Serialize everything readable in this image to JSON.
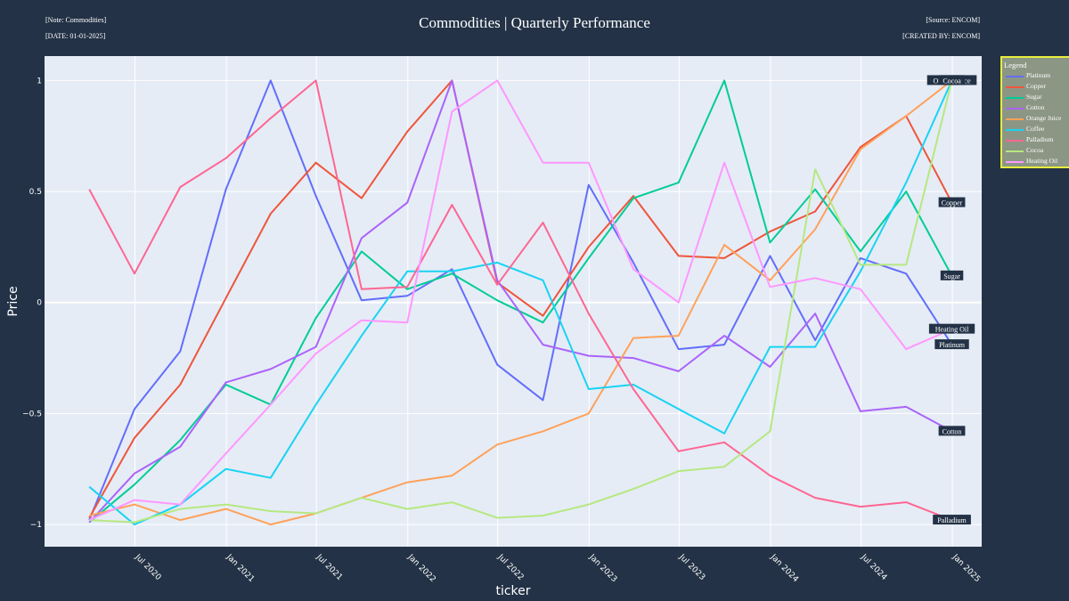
{
  "header": {
    "title": "Commodities | Quarterly Performance",
    "note": "[Note: Commodities]",
    "date": "[DATE: 01-01-2025]",
    "source": "[Source: ENCOM]",
    "created_by": "[CREATED BY: ENCOM]"
  },
  "legend": {
    "title": "Legend"
  },
  "chart_data": {
    "type": "line",
    "title": "Commodities | Quarterly Performance",
    "xlabel": "ticker",
    "ylabel": "Price",
    "x": [
      "2020-03-31",
      "2020-06-30",
      "2020-09-30",
      "2020-12-31",
      "2021-03-31",
      "2021-06-30",
      "2021-09-30",
      "2021-12-31",
      "2022-03-31",
      "2022-06-30",
      "2022-09-30",
      "2022-12-31",
      "2023-03-31",
      "2023-06-30",
      "2023-09-30",
      "2023-12-31",
      "2024-03-31",
      "2024-06-30",
      "2024-09-30",
      "2024-12-31"
    ],
    "x_tick_labels": [
      "Jul 2020",
      "Jan 2021",
      "Jul 2021",
      "Jan 2022",
      "Jul 2022",
      "Jan 2023",
      "Jul 2023",
      "Jan 2024",
      "Jul 2024",
      "Jan 2025"
    ],
    "x_tick_dates": [
      "2020-07-01",
      "2021-01-01",
      "2021-07-01",
      "2022-01-01",
      "2022-07-01",
      "2023-01-01",
      "2023-07-01",
      "2024-01-01",
      "2024-07-01",
      "2025-01-01"
    ],
    "xlim": [
      "2020-01-01",
      "2025-03-01"
    ],
    "y_ticks": [
      1,
      0.5,
      0,
      -0.5,
      -1
    ],
    "y_tick_labels": [
      "1",
      "0.5",
      "0",
      "−0.5",
      "−1"
    ],
    "ylim": [
      -1.1,
      1.11
    ],
    "grid": true,
    "legend_position": "right",
    "colors": {
      "background": "#233246",
      "plot": "#e5ecf6",
      "grid": "#ffffff",
      "legend_bg": "#8c9685",
      "legend_border": "#e8ee3c",
      "end_label_bg": "#233246"
    },
    "series": [
      {
        "name": "Platinum",
        "color": "#636efa",
        "values": [
          -0.98,
          -0.48,
          -0.22,
          0.51,
          1.0,
          0.48,
          0.01,
          0.03,
          0.15,
          -0.28,
          -0.44,
          0.53,
          0.18,
          -0.21,
          -0.19,
          0.21,
          -0.17,
          0.2,
          0.13,
          -0.19
        ]
      },
      {
        "name": "Copper",
        "color": "#ef553b",
        "values": [
          -0.97,
          -0.61,
          -0.37,
          0.02,
          0.4,
          0.63,
          0.47,
          0.77,
          1.0,
          0.09,
          -0.06,
          0.25,
          0.48,
          0.21,
          0.2,
          0.32,
          0.41,
          0.7,
          0.84,
          0.45
        ]
      },
      {
        "name": "Sugar",
        "color": "#00cc96",
        "values": [
          -0.99,
          -0.82,
          -0.62,
          -0.37,
          -0.46,
          -0.07,
          0.23,
          0.06,
          0.13,
          0.01,
          -0.09,
          0.2,
          0.47,
          0.54,
          1.0,
          0.27,
          0.51,
          0.23,
          0.5,
          0.12
        ]
      },
      {
        "name": "Cotton",
        "color": "#ab63fa",
        "values": [
          -0.99,
          -0.77,
          -0.65,
          -0.36,
          -0.3,
          -0.2,
          0.29,
          0.45,
          1.0,
          0.1,
          -0.19,
          -0.24,
          -0.25,
          -0.31,
          -0.15,
          -0.29,
          -0.05,
          -0.49,
          -0.47,
          -0.58
        ]
      },
      {
        "name": "Orange Juice",
        "color": "#ffa15a",
        "values": [
          -0.96,
          -0.91,
          -0.98,
          -0.93,
          -1.0,
          -0.95,
          -0.88,
          -0.81,
          -0.78,
          -0.64,
          -0.58,
          -0.5,
          -0.16,
          -0.15,
          0.26,
          0.1,
          0.33,
          0.69,
          0.84,
          1.0
        ]
      },
      {
        "name": "Coffee",
        "color": "#19d3f3",
        "values": [
          -0.83,
          -1.0,
          -0.91,
          -0.75,
          -0.79,
          -0.46,
          -0.15,
          0.14,
          0.14,
          0.18,
          0.1,
          -0.39,
          -0.37,
          -0.48,
          -0.59,
          -0.2,
          -0.2,
          0.14,
          0.54,
          1.0
        ]
      },
      {
        "name": "Palladium",
        "color": "#ff6692",
        "values": [
          0.51,
          0.13,
          0.52,
          0.65,
          0.83,
          1.0,
          0.06,
          0.07,
          0.44,
          0.08,
          0.36,
          -0.05,
          -0.39,
          -0.67,
          -0.63,
          -0.78,
          -0.88,
          -0.92,
          -0.9,
          -0.98
        ]
      },
      {
        "name": "Cocoa",
        "color": "#b6e880",
        "values": [
          -0.98,
          -0.99,
          -0.93,
          -0.91,
          -0.94,
          -0.95,
          -0.88,
          -0.93,
          -0.9,
          -0.97,
          -0.96,
          -0.91,
          -0.84,
          -0.76,
          -0.74,
          -0.58,
          0.6,
          0.17,
          0.17,
          1.0
        ]
      },
      {
        "name": "Heating Oil",
        "color": "#ff97ff",
        "values": [
          -0.98,
          -0.89,
          -0.91,
          -0.68,
          -0.46,
          -0.23,
          -0.08,
          -0.09,
          0.86,
          1.0,
          0.63,
          0.63,
          0.15,
          0.0,
          0.63,
          0.07,
          0.11,
          0.06,
          -0.21,
          -0.12
        ]
      }
    ]
  }
}
